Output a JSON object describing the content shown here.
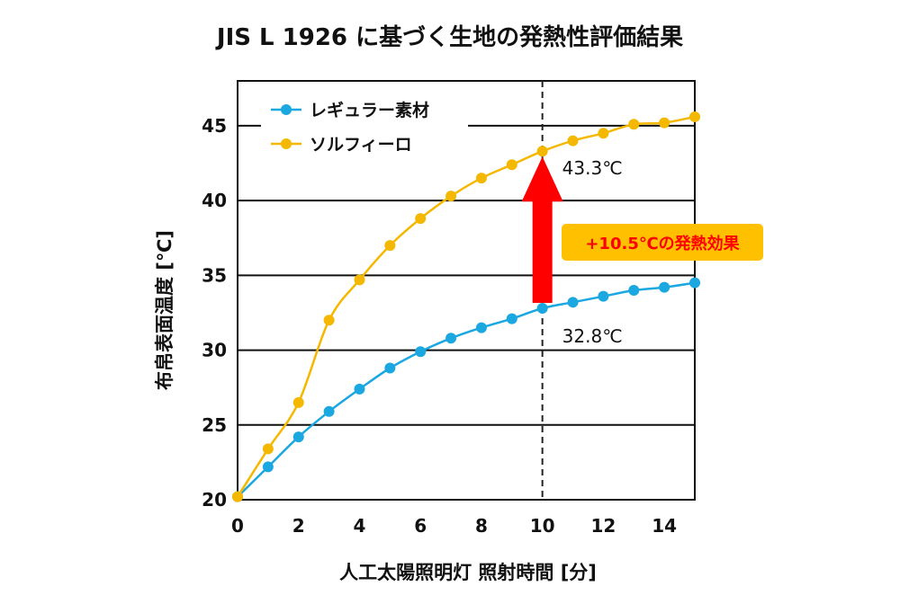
{
  "chart_data": {
    "type": "line",
    "title": "JIS L 1926 に基づく生地の発熱性評価結果",
    "xlabel": "人工太陽照明灯 照射時間 [分]",
    "ylabel": "布帛表面温度 [℃]",
    "xlim": [
      0,
      15
    ],
    "ylim": [
      20,
      48
    ],
    "xticks": [
      0,
      2,
      4,
      6,
      8,
      10,
      12,
      14
    ],
    "yticks": [
      20,
      25,
      30,
      35,
      40,
      45
    ],
    "grid": "horizontal",
    "legend_position": "top-left",
    "x": [
      0,
      1,
      2,
      3,
      4,
      5,
      6,
      7,
      8,
      9,
      10,
      11,
      12,
      13,
      14,
      15
    ],
    "series": [
      {
        "name": "レギュラー素材",
        "color": "#1ba8e0",
        "values": [
          20.2,
          22.2,
          24.2,
          25.9,
          27.4,
          28.8,
          29.9,
          30.8,
          31.5,
          32.1,
          32.8,
          33.2,
          33.6,
          34.0,
          34.2,
          34.5
        ]
      },
      {
        "name": "ソルフィーロ",
        "color": "#f5b800",
        "values": [
          20.2,
          23.4,
          26.5,
          32.0,
          34.7,
          37.0,
          38.8,
          40.3,
          41.5,
          42.4,
          43.3,
          44.0,
          44.5,
          45.1,
          45.2,
          45.6
        ]
      }
    ],
    "annotations": {
      "marker_x": 10,
      "solfiro_value_label": "43.3℃",
      "regular_value_label": "32.8℃",
      "difference_label": "+10.5℃の発熱効果",
      "difference_text_color": "#ff0000",
      "difference_box_color": "#ffc000",
      "arrow_color": "#ff0000"
    }
  }
}
